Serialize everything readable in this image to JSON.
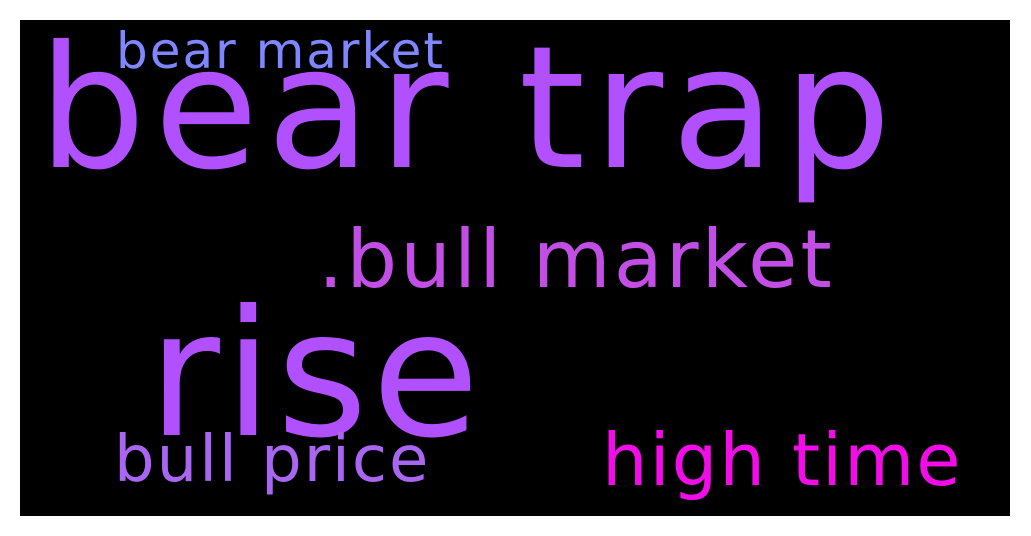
{
  "wordcloud": {
    "background": "#000000",
    "words": [
      {
        "text": "bear trap",
        "color": "#b150ff"
      },
      {
        "text": "rise",
        "color": "#b150ff"
      },
      {
        "text": "bear market",
        "color": "#7f86ff"
      },
      {
        "text": ".bull market",
        "color": "#c24ee6"
      },
      {
        "text": "bull price",
        "color": "#a866f2"
      },
      {
        "text": "high time",
        "color": "#f20de8"
      }
    ]
  }
}
